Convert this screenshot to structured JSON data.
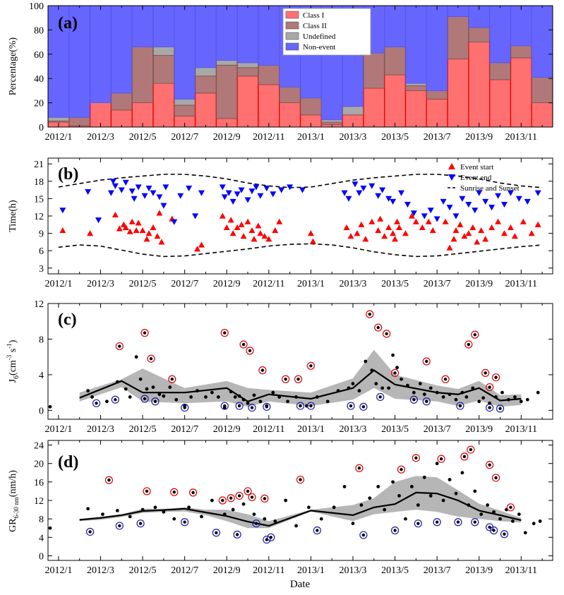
{
  "months": [
    "2012/1",
    "2012/2",
    "2012/3",
    "2012/4",
    "2012/5",
    "2012/6",
    "2012/7",
    "2012/8",
    "2012/9",
    "2012/10",
    "2012/11",
    "2012/12",
    "2013/1",
    "2013/2",
    "2013/3",
    "2013/4",
    "2013/5",
    "2013/6",
    "2013/7",
    "2013/8",
    "2013/9",
    "2013/10",
    "2013/11",
    "2013/12"
  ],
  "xticklabels": [
    "2012/1",
    "2012/3",
    "2012/5",
    "2012/7",
    "2012/9",
    "2012/11",
    "2013/1",
    "2013/3",
    "2013/5",
    "2013/7",
    "2013/9",
    "2013/11"
  ],
  "xlabel": "Date",
  "chart_data": [
    {
      "type": "bar",
      "stacked": true,
      "panel_label": "(a)",
      "ylabel": "Percentage(%)",
      "ylim": [
        0,
        100
      ],
      "yticks": [
        0,
        20,
        40,
        60,
        80,
        100
      ],
      "legend_position": "top-center",
      "categories": [
        "2012/1",
        "2012/2",
        "2012/3",
        "2012/4",
        "2012/5",
        "2012/6",
        "2012/7",
        "2012/8",
        "2012/9",
        "2012/10",
        "2012/11",
        "2012/12",
        "2013/1",
        "2013/2",
        "2013/3",
        "2013/4",
        "2013/5",
        "2013/6",
        "2013/7",
        "2013/8",
        "2013/9",
        "2013/10",
        "2013/11",
        "2013/12"
      ],
      "series": [
        {
          "name": "Class I",
          "color": "#ff7070",
          "values": [
            4,
            1,
            20,
            14,
            20,
            36,
            9,
            28,
            7,
            42,
            35,
            20,
            10,
            2,
            10,
            32,
            43,
            30,
            23,
            56,
            70,
            39,
            57,
            20
          ]
        },
        {
          "name": "Class II",
          "color": "#b07878",
          "values": [
            1,
            7,
            0,
            14,
            46,
            23,
            9,
            14,
            44,
            7,
            16,
            13,
            14,
            2,
            0,
            29,
            23,
            4,
            7,
            35,
            12,
            14,
            10,
            21
          ]
        },
        {
          "name": "Undefined",
          "color": "#a8a8a8",
          "values": [
            3,
            0,
            0,
            0,
            0,
            7,
            5,
            7,
            4,
            4,
            0,
            0,
            0,
            2,
            7,
            0,
            0,
            2,
            0,
            0,
            0,
            0,
            0,
            0
          ]
        },
        {
          "name": "Non-event",
          "color": "#6666ff",
          "values": [
            92,
            92,
            80,
            72,
            34,
            34,
            77,
            51,
            45,
            47,
            49,
            67,
            76,
            94,
            83,
            39,
            34,
            64,
            70,
            9,
            18,
            47,
            33,
            59
          ]
        }
      ]
    },
    {
      "type": "scatter",
      "panel_label": "(b)",
      "ylabel": "Time(h)",
      "ylim": [
        2,
        22
      ],
      "yticks": [
        3,
        6,
        9,
        12,
        15,
        18,
        21
      ],
      "legend_position": "top-right",
      "legend": [
        "Event start",
        "Event end",
        "Sunrise and Sunset"
      ],
      "start_color": "#ff0000",
      "end_color": "#0000ff",
      "sunset_line": {
        "x": [
          1,
          2,
          3,
          4,
          5,
          6,
          7,
          8,
          9,
          10,
          11,
          12,
          13,
          14,
          15,
          16,
          17,
          18,
          19,
          20,
          21,
          22,
          23,
          24
        ],
        "values": [
          17.0,
          17.6,
          18.2,
          18.6,
          18.9,
          19.2,
          19.2,
          18.9,
          18.4,
          17.7,
          17.2,
          16.9,
          17.0,
          17.6,
          18.2,
          18.6,
          18.9,
          19.2,
          19.2,
          18.9,
          18.4,
          17.7,
          17.2,
          16.9
        ]
      },
      "sunrise_line": {
        "x": [
          1,
          2,
          3,
          4,
          5,
          6,
          7,
          8,
          9,
          10,
          11,
          12,
          13,
          14,
          15,
          16,
          17,
          18,
          19,
          20,
          21,
          22,
          23,
          24
        ],
        "values": [
          6.6,
          7.0,
          6.8,
          6.1,
          5.4,
          5.0,
          5.1,
          5.5,
          5.9,
          6.3,
          6.8,
          7.1,
          7.2,
          7.0,
          6.5,
          5.8,
          5.3,
          5.0,
          5.1,
          5.5,
          5.9,
          6.3,
          6.7,
          7.0
        ]
      },
      "event_start": {
        "x": [
          1.2,
          2.5,
          3.7,
          3.9,
          4.1,
          4.2,
          4.4,
          4.5,
          4.7,
          4.8,
          5.0,
          5.2,
          5.3,
          5.5,
          5.7,
          5.8,
          5.9,
          6.4,
          7.6,
          7.8,
          8.8,
          9.0,
          9.2,
          9.3,
          9.5,
          9.7,
          9.8,
          10.0,
          10.2,
          10.3,
          10.5,
          10.6,
          10.8,
          11.0,
          11.3,
          11.5,
          13.0,
          13.1,
          14.7,
          14.9,
          15.2,
          15.4,
          15.6,
          15.9,
          16.2,
          16.3,
          16.5,
          16.7,
          16.9,
          17.0,
          17.1,
          17.2,
          17.5,
          17.8,
          18.0,
          18.3,
          18.6,
          18.8,
          19.4,
          19.6,
          19.8,
          19.9,
          20.1,
          20.3,
          20.5,
          20.7,
          20.9,
          21.1,
          21.3,
          21.6,
          21.9,
          22.2,
          22.5,
          22.7,
          23.1,
          23.5,
          23.8
        ],
        "values": [
          9.5,
          9.0,
          12.2,
          9.8,
          10.5,
          10.0,
          9.3,
          11.0,
          9.5,
          10.8,
          9.5,
          8.0,
          9.0,
          10.0,
          8.5,
          12.5,
          7.5,
          11.5,
          6.3,
          7.0,
          12.0,
          10.0,
          11.3,
          9.0,
          10.0,
          10.5,
          8.5,
          11.0,
          9.5,
          8.0,
          10.3,
          9.0,
          8.5,
          8.0,
          9.5,
          11.0,
          9.0,
          7.6,
          10.0,
          8.5,
          9.0,
          10.5,
          8.0,
          11.0,
          9.5,
          11.5,
          8.5,
          10.0,
          9.0,
          8.0,
          11.0,
          10.0,
          9.0,
          12.0,
          11.0,
          10.0,
          11.0,
          9.5,
          11.0,
          6.5,
          8.0,
          9.5,
          10.5,
          8.5,
          9.0,
          10.0,
          7.5,
          9.5,
          8.0,
          10.0,
          11.0,
          9.0,
          10.0,
          8.5,
          11.0,
          9.0,
          10.5
        ]
      },
      "event_end": {
        "x": [
          1.2,
          2.4,
          2.9,
          3.5,
          3.6,
          3.7,
          4.0,
          4.2,
          4.5,
          4.6,
          4.8,
          5.1,
          5.3,
          5.5,
          5.8,
          6.0,
          6.1,
          6.5,
          6.8,
          7.2,
          7.5,
          7.8,
          8.8,
          8.9,
          9.1,
          9.3,
          9.5,
          9.7,
          10.0,
          10.2,
          10.4,
          10.6,
          10.9,
          11.2,
          11.6,
          12.0,
          12.6,
          14.6,
          14.8,
          15.1,
          15.3,
          15.5,
          15.9,
          16.2,
          16.4,
          16.7,
          16.9,
          17.3,
          17.6,
          17.9,
          18.4,
          18.7,
          19.0,
          19.3,
          19.6,
          19.9,
          20.2,
          20.5,
          20.8,
          21.0,
          21.3,
          21.6,
          21.9,
          22.2,
          22.5,
          22.9,
          23.3,
          23.8
        ],
        "values": [
          13.0,
          16.2,
          11.3,
          16.0,
          18.0,
          17.2,
          16.5,
          17.8,
          16.3,
          15.0,
          17.0,
          15.5,
          16.8,
          16.0,
          15.3,
          13.8,
          17.0,
          11.0,
          15.5,
          16.8,
          12.0,
          16.0,
          17.0,
          15.3,
          16.0,
          14.5,
          15.8,
          16.5,
          14.8,
          16.3,
          17.0,
          15.5,
          16.8,
          15.8,
          16.5,
          17.0,
          16.5,
          16.0,
          15.0,
          17.5,
          16.0,
          16.8,
          17.2,
          15.5,
          16.5,
          15.0,
          14.5,
          16.0,
          14.0,
          12.5,
          12.0,
          13.0,
          11.5,
          14.5,
          13.5,
          12.0,
          15.0,
          14.0,
          13.0,
          16.0,
          14.5,
          13.5,
          15.5,
          14.0,
          16.0,
          15.0,
          14.5,
          16.0
        ]
      }
    },
    {
      "type": "line",
      "panel_label": "(c)",
      "ylabel_main": "J",
      "ylabel_sub": "6",
      "ylabel_unit_open": "(cm",
      "ylabel_exp1": "-3",
      "ylabel_mid": " s",
      "ylabel_exp2": "-1",
      "ylabel_close": ")",
      "ylim": [
        -1,
        12
      ],
      "yticks": [
        0,
        4,
        8,
        12
      ],
      "median": {
        "x": [
          2,
          4,
          5,
          7,
          9,
          10,
          11,
          13,
          15,
          16,
          17,
          19,
          20,
          21,
          22,
          23
        ],
        "values": [
          1.4,
          3.3,
          2.0,
          2.0,
          2.5,
          1.0,
          1.8,
          1.3,
          2.5,
          4.5,
          2.9,
          2.0,
          1.8,
          2.5,
          1.1,
          1.3
        ]
      },
      "band_upper": [
        2.0,
        3.5,
        4.7,
        2.5,
        3.3,
        2.5,
        2.3,
        2.0,
        3.6,
        6.8,
        4.0,
        2.8,
        2.4,
        3.3,
        1.7,
        1.8
      ],
      "band_lower": [
        1.0,
        2.6,
        1.0,
        0.8,
        1.0,
        0.4,
        1.0,
        0.5,
        1.2,
        2.5,
        1.3,
        1.0,
        0.5,
        1.1,
        0.4,
        0.6
      ],
      "high_outliers": {
        "x": [
          3.9,
          5.1,
          5.4,
          6.4,
          8.9,
          9.8,
          10.1,
          10.7,
          11.8,
          12.4,
          13.0,
          15.8,
          16.2,
          16.6,
          17.0,
          18.5,
          19.4,
          20.5,
          20.8,
          21.3,
          21.5,
          21.8
        ],
        "values": [
          7.2,
          8.7,
          5.8,
          3.5,
          8.7,
          7.4,
          6.7,
          4.5,
          3.5,
          3.5,
          5.0,
          10.8,
          9.3,
          8.6,
          4.2,
          5.5,
          3.5,
          7.4,
          8.5,
          4.2,
          2.6,
          3.7
        ]
      },
      "low_outliers": {
        "x": [
          2.8,
          3.7,
          5.1,
          5.6,
          7.0,
          8.9,
          9.6,
          10.2,
          10.9,
          12.5,
          13.0,
          14.9,
          15.5,
          16.3,
          17.9,
          18.5,
          20.1,
          21.5,
          22.0
        ],
        "values": [
          0.8,
          1.2,
          1.3,
          1.0,
          0.3,
          0.5,
          0.5,
          0.3,
          0.4,
          0.5,
          0.5,
          0.5,
          0.4,
          1.5,
          1.2,
          1.0,
          0.5,
          0.3,
          0.2
        ]
      },
      "points": {
        "x": [
          0.6,
          2.4,
          2.6,
          3.3,
          3.8,
          4.2,
          4.4,
          4.7,
          4.9,
          5.2,
          5.5,
          5.8,
          6.0,
          6.3,
          6.6,
          7.0,
          7.3,
          7.6,
          8.0,
          8.3,
          8.6,
          8.9,
          9.2,
          9.4,
          9.6,
          9.8,
          10.0,
          10.3,
          10.6,
          10.9,
          11.2,
          11.5,
          11.9,
          12.3,
          12.8,
          13.3,
          13.8,
          14.3,
          14.8,
          15.0,
          15.3,
          15.6,
          15.9,
          16.1,
          16.4,
          16.7,
          16.9,
          17.1,
          17.3,
          17.6,
          17.9,
          18.2,
          18.4,
          18.7,
          19.0,
          19.3,
          19.6,
          19.9,
          20.2,
          20.4,
          20.7,
          21.0,
          21.2,
          21.5,
          21.8,
          22.1,
          22.4,
          22.7,
          23.0,
          23.3,
          23.8
        ],
        "values": [
          0.4,
          2.2,
          1.5,
          1.0,
          3.2,
          2.4,
          1.5,
          6.0,
          3.5,
          2.4,
          2.6,
          1.8,
          1.6,
          2.6,
          1.2,
          0.5,
          1.5,
          2.2,
          1.5,
          2.0,
          1.5,
          0.3,
          2.1,
          1.5,
          1.6,
          1.2,
          0.8,
          1.7,
          1.0,
          0.5,
          2.0,
          1.5,
          1.0,
          1.5,
          0.5,
          1.5,
          1.0,
          2.2,
          2.5,
          3.0,
          2.2,
          5.5,
          4.5,
          3.0,
          2.5,
          2.5,
          6.2,
          4.8,
          3.5,
          2.8,
          2.0,
          3.0,
          1.8,
          2.5,
          2.0,
          1.5,
          1.8,
          1.2,
          2.0,
          1.5,
          2.5,
          1.0,
          1.4,
          0.8,
          1.5,
          2.0,
          1.2,
          1.5,
          1.0,
          1.2,
          2.0
        ]
      }
    },
    {
      "type": "line",
      "panel_label": "(d)",
      "ylabel_main": "GR",
      "ylabel_sub": "6-30 nm",
      "ylabel_unit": "(nm/h)",
      "ylim": [
        -1,
        25
      ],
      "yticks": [
        0,
        4,
        8,
        12,
        16,
        20,
        24
      ],
      "median": {
        "x": [
          2,
          3,
          4,
          5,
          6,
          7,
          8,
          9,
          10,
          11,
          13,
          15,
          16,
          17,
          18,
          19,
          20,
          21,
          22,
          23
        ],
        "values": [
          7.8,
          8.2,
          8.8,
          9.7,
          9.9,
          10.2,
          9.4,
          8.6,
          7.4,
          6.5,
          9.8,
          8.8,
          10.5,
          11.2,
          13.7,
          13.5,
          12.0,
          9.8,
          8.8,
          7.7
        ]
      },
      "band_upper": [
        8.0,
        8.5,
        9.0,
        10.2,
        10.2,
        10.5,
        10.0,
        10.0,
        9.0,
        7.5,
        10.0,
        11.0,
        12.5,
        16.0,
        17.3,
        17.0,
        14.2,
        11.3,
        9.8,
        8.2
      ],
      "band_lower": [
        7.5,
        7.8,
        8.4,
        9.3,
        9.5,
        9.6,
        8.8,
        7.5,
        6.0,
        6.0,
        9.6,
        7.5,
        9.0,
        9.5,
        10.0,
        9.5,
        8.5,
        8.0,
        7.5,
        7.2
      ],
      "high_outliers": {
        "x": [
          3.4,
          5.2,
          6.5,
          7.4,
          8.8,
          9.2,
          9.6,
          10.0,
          10.2,
          10.8,
          12.5,
          15.3,
          17.3,
          18.0,
          19.2,
          20.3,
          20.6,
          21.5,
          21.8,
          22.5
        ],
        "values": [
          16.4,
          14.0,
          13.8,
          13.7,
          12.0,
          12.5,
          13.0,
          14.0,
          12.7,
          12.4,
          16.5,
          19.0,
          18.7,
          21.2,
          21.0,
          21.5,
          23.0,
          19.7,
          16.9,
          10.5
        ]
      },
      "low_outliers": {
        "x": [
          2.5,
          3.9,
          4.9,
          7.0,
          8.5,
          9.5,
          10.4,
          10.9,
          11.1,
          13.3,
          15.5,
          17.0,
          18.1,
          19.0,
          20.0,
          20.8,
          21.5,
          21.7,
          22.2
        ],
        "values": [
          5.2,
          6.5,
          7.0,
          7.3,
          5.0,
          4.6,
          7.0,
          3.5,
          4.0,
          5.5,
          4.5,
          5.5,
          7.0,
          7.3,
          7.3,
          7.3,
          6.2,
          5.5,
          4.7
        ]
      },
      "points": {
        "x": [
          0.6,
          2.4,
          3.1,
          3.8,
          4.4,
          5.0,
          5.6,
          6.0,
          6.5,
          7.2,
          7.8,
          8.3,
          8.9,
          9.3,
          9.8,
          10.3,
          10.8,
          11.3,
          11.8,
          12.3,
          12.9,
          13.5,
          14.1,
          14.6,
          15.0,
          15.4,
          15.8,
          16.2,
          16.5,
          16.9,
          17.2,
          17.5,
          17.8,
          18.1,
          18.4,
          18.7,
          19.0,
          19.3,
          19.6,
          19.9,
          20.2,
          20.5,
          20.8,
          21.1,
          21.4,
          21.7,
          22.0,
          22.3,
          22.6,
          22.9,
          23.2,
          23.6,
          23.9
        ],
        "values": [
          6.0,
          10.2,
          9.0,
          9.8,
          8.5,
          10.0,
          10.5,
          9.5,
          8.0,
          10.5,
          8.5,
          12.0,
          9.0,
          10.0,
          11.2,
          9.0,
          8.0,
          7.5,
          12.0,
          6.5,
          10.5,
          8.0,
          10.5,
          15.0,
          7.0,
          11.0,
          12.5,
          15.0,
          10.0,
          16.0,
          13.0,
          8.0,
          15.0,
          11.0,
          17.0,
          13.0,
          20.0,
          12.0,
          16.5,
          13.5,
          18.0,
          11.0,
          14.0,
          9.0,
          11.0,
          9.5,
          8.0,
          10.0,
          7.5,
          9.0,
          5.0,
          7.0,
          7.5
        ]
      }
    }
  ]
}
